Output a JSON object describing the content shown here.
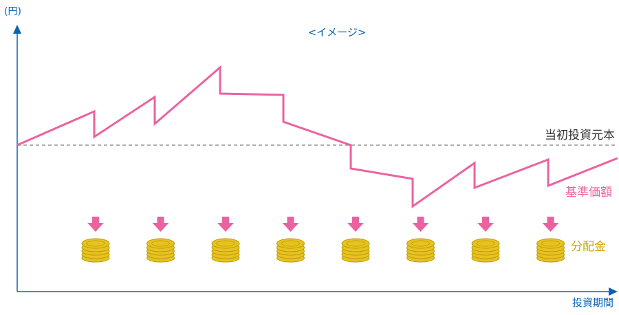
{
  "y_axis_unit": "(円)",
  "title": "<イメージ>",
  "principal_label": "当初投資元本",
  "nav_label": "基準価額",
  "dividend_label": "分配金",
  "x_axis_label": "投資期間",
  "colors": {
    "axis": "#0a62b5",
    "text_blue": "#0a62b5",
    "principal_line": "#808080",
    "principal_text": "#333333",
    "nav_line": "#eb62a0",
    "arrow": "#eb62a0",
    "coin_fill": "#e8c31e",
    "coin_dark": "#b89a10",
    "dividend_text": "#c8a810"
  },
  "dividend_count": 8
}
